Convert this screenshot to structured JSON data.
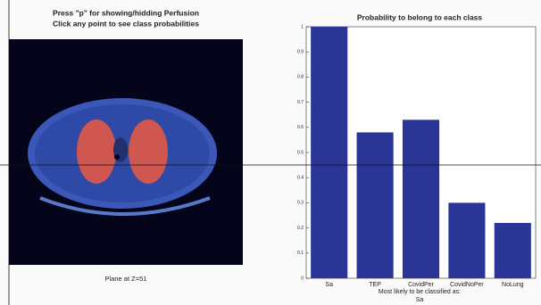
{
  "left_panel": {
    "instructions": [
      "Press \"p\" for showing/hidding Perfusion",
      "Click any point to see class probabilities"
    ],
    "caption": "Plane at Z=51"
  },
  "chart_data": {
    "type": "bar",
    "title": "Probability to belong to each class",
    "categories": [
      "Sa",
      "TEP",
      "CovidPer",
      "CovidNoPer",
      "NoLung"
    ],
    "values": [
      1,
      0.58,
      0.63,
      0.3,
      0.22
    ],
    "color": "#2b3596",
    "xlabel": [
      "Most likely to be classified as:",
      "Sa"
    ],
    "ylim": [
      0,
      1
    ],
    "yticks": [
      0,
      0.1,
      0.2,
      0.3,
      0.4,
      0.5,
      0.6,
      0.7,
      0.8,
      0.9,
      1
    ]
  }
}
